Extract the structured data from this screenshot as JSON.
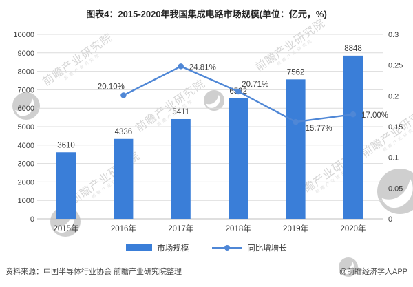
{
  "title": "图表4：2015-2020年我国集成电路市场规模(单位：亿元，%)",
  "legend": {
    "bar": "市场规模",
    "line": "同比增增长"
  },
  "footer": {
    "source": "资料来源：中国半导体行业协会 前瞻产业研究院整理",
    "credit": "@前瞻经济学人APP"
  },
  "watermark": {
    "text": "前瞻产业研究院"
  },
  "colors": {
    "bar": "#3a7ed8",
    "line": "#4f87d6",
    "grid": "#dcdcdc",
    "zero_line": "#bfbfbf",
    "text": "#3d3d3d",
    "title": "#262626",
    "footer": "#4a4a4a",
    "watermark": "#d6d6d6",
    "logo": "#a9a9a9"
  },
  "chart_data": {
    "type": "bar+line",
    "title": "图表4：2015-2020年我国集成电路市场规模(单位：亿元，%)",
    "categories": [
      "2015年",
      "2016年",
      "2017年",
      "2018年",
      "2019年",
      "2020年"
    ],
    "series": [
      {
        "name": "市场规模",
        "chart": "bar",
        "axis": "left",
        "unit": "亿元",
        "values": [
          3610,
          4336,
          5411,
          6532,
          7562,
          8848
        ],
        "data_labels": [
          "3610",
          "4336",
          "5411",
          "6532",
          "7562",
          "8848"
        ]
      },
      {
        "name": "同比增增长",
        "chart": "line",
        "axis": "right",
        "unit": "%",
        "values": [
          null,
          0.201,
          0.2481,
          0.2071,
          0.1577,
          0.17
        ],
        "data_labels": [
          "",
          "20.10%",
          "24.81%",
          "20.71%",
          "15.77%",
          "17.00%"
        ],
        "label_placement": [
          "none",
          "left-above",
          "right",
          "above-right",
          "below-right",
          "right"
        ]
      }
    ],
    "y_left": {
      "min": 0,
      "max": 10000,
      "tick_step": 1000,
      "ticks": [
        0,
        1000,
        2000,
        3000,
        4000,
        5000,
        6000,
        7000,
        8000,
        9000,
        10000
      ]
    },
    "y_right": {
      "min": 0,
      "max": 0.3,
      "tick_step": 0.05,
      "tick_labels": [
        "0",
        "0.05",
        "0.1",
        "0.15",
        "0.2",
        "0.25",
        "0.3"
      ]
    },
    "grid": "horizontal",
    "legend_position": "bottom"
  }
}
